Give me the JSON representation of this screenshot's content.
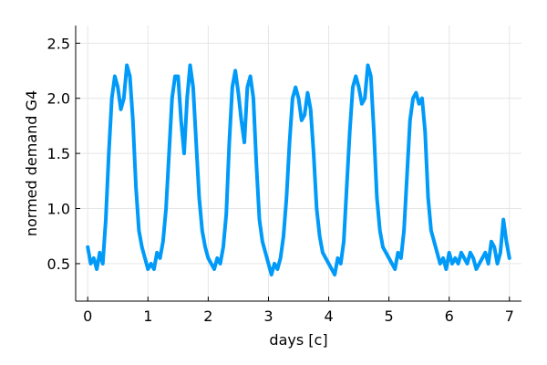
{
  "chart_data": {
    "type": "line",
    "title": "",
    "xlabel": "days [c]",
    "ylabel": "normed demand G4",
    "xlim": [
      -0.2,
      7.2
    ],
    "ylim": [
      0.16,
      2.66
    ],
    "xticks": [
      0,
      1,
      2,
      3,
      4,
      5,
      6,
      7
    ],
    "xtick_labels": [
      "0",
      "1",
      "2",
      "3",
      "4",
      "5",
      "6",
      "7"
    ],
    "yticks": [
      0.5,
      1.0,
      1.5,
      2.0,
      2.5
    ],
    "ytick_labels": [
      "0.5",
      "1.0",
      "1.5",
      "2.0",
      "2.5"
    ],
    "grid": true,
    "legend": "none",
    "series": [
      {
        "color": "#009af9",
        "x": [
          0.0,
          0.05,
          0.1,
          0.15,
          0.2,
          0.25,
          0.3,
          0.35,
          0.4,
          0.45,
          0.5,
          0.55,
          0.6,
          0.65,
          0.7,
          0.75,
          0.8,
          0.85,
          0.9,
          0.95,
          1.0,
          1.05,
          1.1,
          1.15,
          1.2,
          1.25,
          1.3,
          1.35,
          1.4,
          1.45,
          1.5,
          1.55,
          1.6,
          1.65,
          1.7,
          1.75,
          1.8,
          1.85,
          1.9,
          1.95,
          2.0,
          2.05,
          2.1,
          2.15,
          2.2,
          2.25,
          2.3,
          2.35,
          2.4,
          2.45,
          2.5,
          2.55,
          2.6,
          2.65,
          2.7,
          2.75,
          2.8,
          2.85,
          2.9,
          2.95,
          3.0,
          3.05,
          3.1,
          3.15,
          3.2,
          3.25,
          3.3,
          3.35,
          3.4,
          3.45,
          3.5,
          3.55,
          3.6,
          3.65,
          3.7,
          3.75,
          3.8,
          3.85,
          3.9,
          3.95,
          4.0,
          4.05,
          4.1,
          4.15,
          4.2,
          4.25,
          4.3,
          4.35,
          4.4,
          4.45,
          4.5,
          4.55,
          4.6,
          4.65,
          4.7,
          4.75,
          4.8,
          4.85,
          4.9,
          4.95,
          5.0,
          5.05,
          5.1,
          5.15,
          5.2,
          5.25,
          5.3,
          5.35,
          5.4,
          5.45,
          5.5,
          5.55,
          5.6,
          5.65,
          5.7,
          5.75,
          5.8,
          5.85,
          5.9,
          5.95,
          6.0,
          6.05,
          6.1,
          6.15,
          6.2,
          6.25,
          6.3,
          6.35,
          6.4,
          6.45,
          6.5,
          6.55,
          6.6,
          6.65,
          6.7,
          6.75,
          6.8,
          6.85,
          6.9,
          6.95,
          7.0
        ],
        "y": [
          0.65,
          0.5,
          0.55,
          0.45,
          0.6,
          0.5,
          0.9,
          1.5,
          2.0,
          2.2,
          2.1,
          1.9,
          2.0,
          2.3,
          2.2,
          1.8,
          1.2,
          0.8,
          0.65,
          0.55,
          0.45,
          0.5,
          0.45,
          0.6,
          0.55,
          0.7,
          1.0,
          1.5,
          2.0,
          2.2,
          2.2,
          1.8,
          1.5,
          2.0,
          2.3,
          2.1,
          1.6,
          1.1,
          0.8,
          0.65,
          0.55,
          0.5,
          0.45,
          0.55,
          0.5,
          0.65,
          0.95,
          1.6,
          2.1,
          2.25,
          2.05,
          1.8,
          1.6,
          2.1,
          2.2,
          2.0,
          1.4,
          0.9,
          0.7,
          0.6,
          0.5,
          0.4,
          0.5,
          0.45,
          0.55,
          0.75,
          1.1,
          1.6,
          2.0,
          2.1,
          2.0,
          1.8,
          1.85,
          2.05,
          1.9,
          1.5,
          1.0,
          0.75,
          0.6,
          0.55,
          0.5,
          0.45,
          0.4,
          0.55,
          0.5,
          0.7,
          1.2,
          1.7,
          2.1,
          2.2,
          2.1,
          1.95,
          2.0,
          2.3,
          2.2,
          1.7,
          1.1,
          0.8,
          0.65,
          0.6,
          0.55,
          0.5,
          0.45,
          0.6,
          0.55,
          0.8,
          1.3,
          1.8,
          2.0,
          2.05,
          1.95,
          2.0,
          1.7,
          1.1,
          0.8,
          0.7,
          0.6,
          0.5,
          0.55,
          0.45,
          0.6,
          0.5,
          0.55,
          0.5,
          0.6,
          0.55,
          0.5,
          0.6,
          0.55,
          0.45,
          0.5,
          0.55,
          0.6,
          0.5,
          0.7,
          0.65,
          0.5,
          0.6,
          0.9,
          0.7,
          0.55
        ]
      }
    ]
  }
}
